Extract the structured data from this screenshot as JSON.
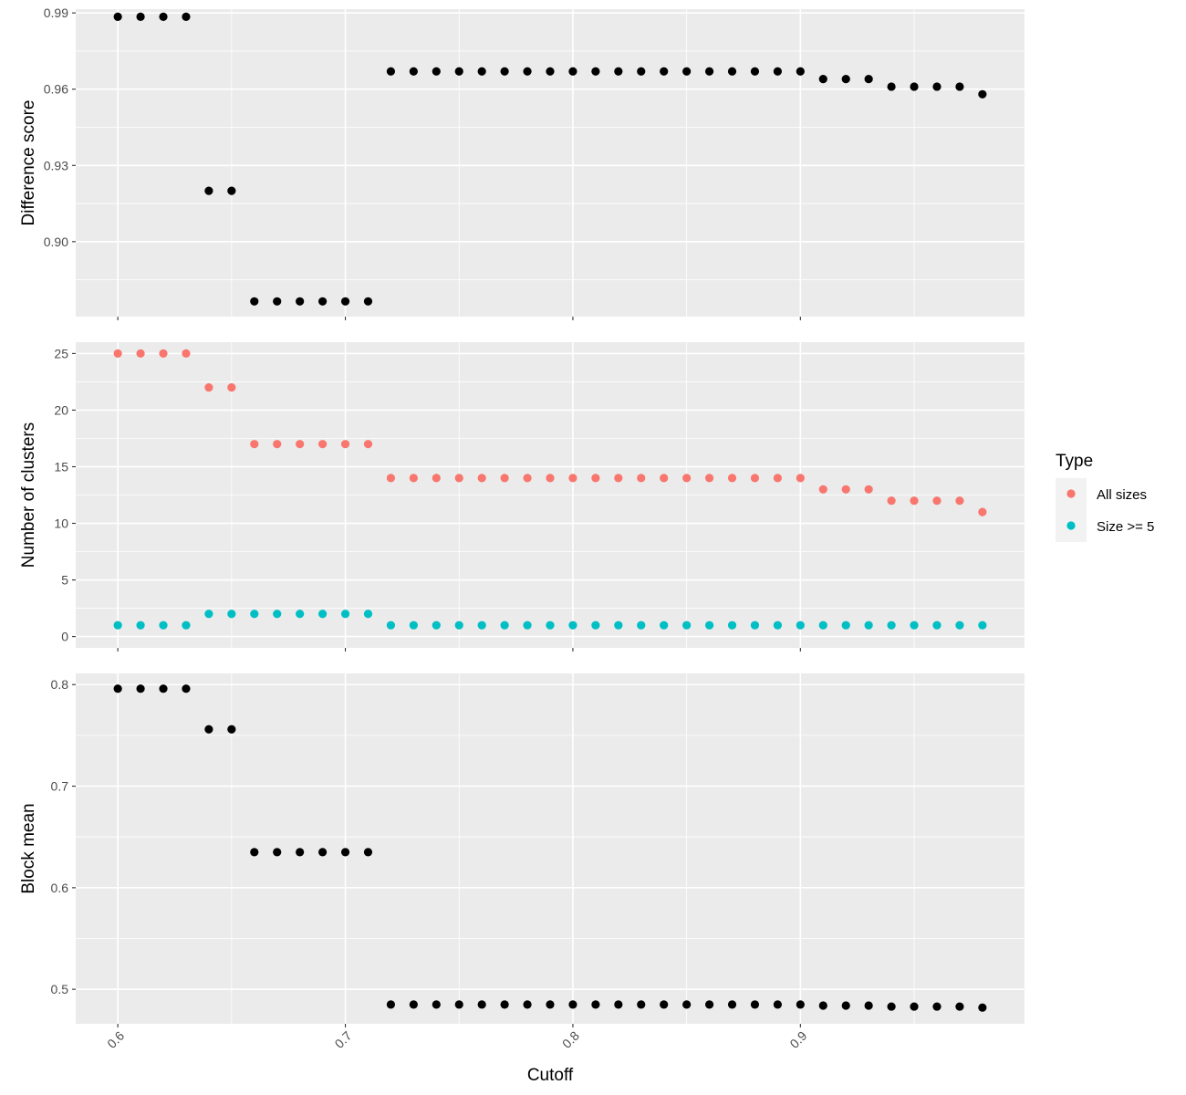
{
  "chart_data": [
    {
      "type": "scatter",
      "ylabel": "Difference score",
      "ylim": [
        0.8705,
        0.9915
      ],
      "yticks": [
        0.9,
        0.93,
        0.96,
        0.99
      ],
      "ytick_labels": [
        "0.90",
        "0.93",
        "0.96",
        "0.99"
      ],
      "grid": true,
      "series": [
        {
          "color": "#000000",
          "x": [
            0.6,
            0.61,
            0.62,
            0.63,
            0.64,
            0.65,
            0.66,
            0.67,
            0.68,
            0.69,
            0.7,
            0.71,
            0.72,
            0.73,
            0.74,
            0.75,
            0.76,
            0.77,
            0.78,
            0.79,
            0.8,
            0.81,
            0.82,
            0.83,
            0.84,
            0.85,
            0.86,
            0.87,
            0.88,
            0.89,
            0.9,
            0.91,
            0.92,
            0.93,
            0.94,
            0.95,
            0.96,
            0.97,
            0.98
          ],
          "y": [
            0.9885,
            0.9885,
            0.9885,
            0.9885,
            0.92,
            0.92,
            0.8765,
            0.8765,
            0.8765,
            0.8765,
            0.8765,
            0.8765,
            0.967,
            0.967,
            0.967,
            0.967,
            0.967,
            0.967,
            0.967,
            0.967,
            0.967,
            0.967,
            0.967,
            0.967,
            0.967,
            0.967,
            0.967,
            0.967,
            0.967,
            0.967,
            0.967,
            0.964,
            0.964,
            0.964,
            0.961,
            0.961,
            0.961,
            0.961,
            0.958
          ]
        }
      ]
    },
    {
      "type": "scatter",
      "ylabel": "Number of clusters",
      "ylim": [
        -1.0,
        26.0
      ],
      "yticks": [
        0,
        5,
        10,
        15,
        20,
        25
      ],
      "ytick_labels": [
        "0",
        "5",
        "10",
        "15",
        "20",
        "25"
      ],
      "grid": true,
      "legend": {
        "title": "Type",
        "position": "right",
        "entries": [
          {
            "label": "All sizes",
            "color": "#F8766D"
          },
          {
            "label": "Size >= 5",
            "color": "#00BFC4"
          }
        ]
      },
      "series": [
        {
          "name": "All sizes",
          "color": "#F8766D",
          "x": [
            0.6,
            0.61,
            0.62,
            0.63,
            0.64,
            0.65,
            0.66,
            0.67,
            0.68,
            0.69,
            0.7,
            0.71,
            0.72,
            0.73,
            0.74,
            0.75,
            0.76,
            0.77,
            0.78,
            0.79,
            0.8,
            0.81,
            0.82,
            0.83,
            0.84,
            0.85,
            0.86,
            0.87,
            0.88,
            0.89,
            0.9,
            0.91,
            0.92,
            0.93,
            0.94,
            0.95,
            0.96,
            0.97,
            0.98
          ],
          "y": [
            25,
            25,
            25,
            25,
            22,
            22,
            17,
            17,
            17,
            17,
            17,
            17,
            14,
            14,
            14,
            14,
            14,
            14,
            14,
            14,
            14,
            14,
            14,
            14,
            14,
            14,
            14,
            14,
            14,
            14,
            14,
            13,
            13,
            13,
            12,
            12,
            12,
            12,
            11
          ]
        },
        {
          "name": "Size >= 5",
          "color": "#00BFC4",
          "x": [
            0.6,
            0.61,
            0.62,
            0.63,
            0.64,
            0.65,
            0.66,
            0.67,
            0.68,
            0.69,
            0.7,
            0.71,
            0.72,
            0.73,
            0.74,
            0.75,
            0.76,
            0.77,
            0.78,
            0.79,
            0.8,
            0.81,
            0.82,
            0.83,
            0.84,
            0.85,
            0.86,
            0.87,
            0.88,
            0.89,
            0.9,
            0.91,
            0.92,
            0.93,
            0.94,
            0.95,
            0.96,
            0.97,
            0.98
          ],
          "y": [
            1,
            1,
            1,
            1,
            2,
            2,
            2,
            2,
            2,
            2,
            2,
            2,
            1,
            1,
            1,
            1,
            1,
            1,
            1,
            1,
            1,
            1,
            1,
            1,
            1,
            1,
            1,
            1,
            1,
            1,
            1,
            1,
            1,
            1,
            1,
            1,
            1,
            1,
            1
          ]
        }
      ]
    },
    {
      "type": "scatter",
      "ylabel": "Block mean",
      "xlabel": "Cutoff",
      "xlim": [
        0.5815,
        0.9985
      ],
      "xticks": [
        0.6,
        0.7,
        0.8,
        0.9
      ],
      "xtick_labels": [
        "0.6",
        "0.7",
        "0.8",
        "0.9"
      ],
      "ylim": [
        0.466,
        0.811
      ],
      "yticks": [
        0.5,
        0.6,
        0.7,
        0.8
      ],
      "ytick_labels": [
        "0.5",
        "0.6",
        "0.7",
        "0.8"
      ],
      "grid": true,
      "series": [
        {
          "color": "#000000",
          "x": [
            0.6,
            0.61,
            0.62,
            0.63,
            0.64,
            0.65,
            0.66,
            0.67,
            0.68,
            0.69,
            0.7,
            0.71,
            0.72,
            0.73,
            0.74,
            0.75,
            0.76,
            0.77,
            0.78,
            0.79,
            0.8,
            0.81,
            0.82,
            0.83,
            0.84,
            0.85,
            0.86,
            0.87,
            0.88,
            0.89,
            0.9,
            0.91,
            0.92,
            0.93,
            0.94,
            0.95,
            0.96,
            0.97,
            0.98
          ],
          "y": [
            0.796,
            0.796,
            0.796,
            0.796,
            0.756,
            0.756,
            0.635,
            0.635,
            0.635,
            0.635,
            0.635,
            0.635,
            0.485,
            0.485,
            0.485,
            0.485,
            0.485,
            0.485,
            0.485,
            0.485,
            0.485,
            0.485,
            0.485,
            0.485,
            0.485,
            0.485,
            0.485,
            0.485,
            0.485,
            0.485,
            0.485,
            0.484,
            0.484,
            0.484,
            0.483,
            0.483,
            0.483,
            0.483,
            0.482
          ]
        }
      ]
    }
  ]
}
